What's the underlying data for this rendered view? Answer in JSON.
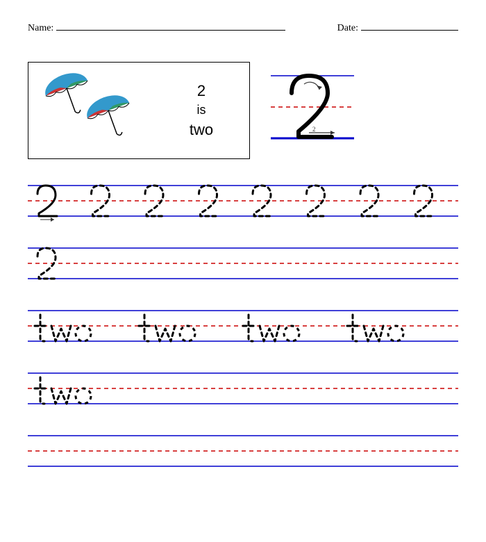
{
  "header": {
    "name_label": "Name:",
    "date_label": "Date:",
    "name_line_width": 330,
    "date_line_width": 140
  },
  "illustration": {
    "number": "2",
    "is_word": "is",
    "word": "two",
    "umbrella_colors": {
      "panel1": "#cc3333",
      "panel2": "#3399cc",
      "panel3": "#339966",
      "pole": "#000000"
    }
  },
  "demo": {
    "line_color_top": "#0000cc",
    "line_color_mid": "#cc0000",
    "line_color_bot": "#0000cc",
    "glyph_color": "#000000",
    "arrow_color": "#333333",
    "arrow2_label": "2"
  },
  "practice_lines": {
    "line_color_solid": "#0000cc",
    "line_color_dashed": "#cc0000",
    "trace_color": "#000000",
    "solid_glyph_color": "#000000",
    "row1": {
      "first_solid": "2",
      "traced": "2",
      "count": 8
    },
    "row2": {
      "first_solid": "2"
    },
    "row3": {
      "word": "two",
      "count": 4
    },
    "row4": {
      "word": "two",
      "count": 1
    }
  },
  "style": {
    "background": "#ffffff",
    "dash_pattern": "6,5",
    "trace_dash": "5,5",
    "line_height": 60
  }
}
